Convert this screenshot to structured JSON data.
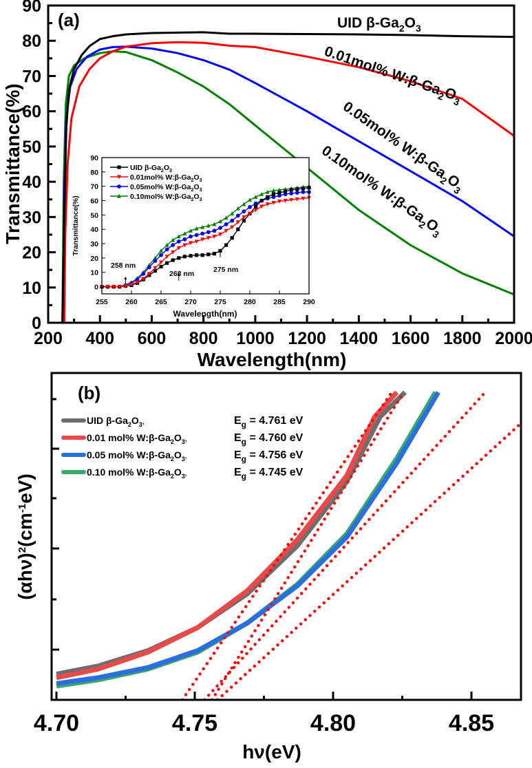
{
  "chart_data": [
    {
      "id": "a",
      "type": "line",
      "panel_label": "(a)",
      "xlabel": "Wavelength(nm)",
      "ylabel": "Transmittance(%)",
      "xlim": [
        200,
        2000
      ],
      "ylim": [
        0,
        90
      ],
      "xticks": [
        200,
        400,
        600,
        800,
        1000,
        1200,
        1400,
        1600,
        1800,
        2000
      ],
      "yticks": [
        0,
        10,
        20,
        30,
        40,
        50,
        60,
        70,
        80,
        90
      ],
      "grid": false,
      "series": [
        {
          "name": "UID β-Ga2O3",
          "label_main": "UID β-Ga",
          "color": "#000000",
          "x": [
            200,
            255,
            262,
            270,
            280,
            300,
            330,
            360,
            400,
            450,
            500,
            600,
            700,
            800,
            900,
            1000,
            1200,
            1400,
            1600,
            1800,
            2000
          ],
          "y": [
            0,
            0,
            30,
            55,
            66,
            72,
            76,
            78.5,
            80.5,
            81.3,
            81.8,
            82.2,
            82.3,
            82.4,
            82.0,
            82.0,
            81.9,
            81.8,
            81.6,
            81.3,
            81.1
          ]
        },
        {
          "name": "0.01mol% W:β-Ga2O3",
          "label_main": "0.01mol% W:β-Ga",
          "color": "#ff0000",
          "x": [
            200,
            262,
            266,
            275,
            290,
            320,
            360,
            400,
            450,
            500,
            600,
            700,
            800,
            900,
            1000,
            1200,
            1400,
            1600,
            1800,
            2000
          ],
          "y": [
            0,
            0,
            25,
            45,
            58,
            67,
            72,
            75,
            77,
            78.3,
            79.3,
            79.6,
            79.4,
            78.6,
            78.2,
            75.5,
            72.5,
            68.5,
            63.5,
            53
          ]
        },
        {
          "name": "0.05mol% W:β-Ga2O3",
          "label_main": "0.05mol% W:β-Ga",
          "color": "#0000ff",
          "x": [
            200,
            257,
            262,
            270,
            285,
            310,
            350,
            400,
            450,
            500,
            600,
            700,
            800,
            900,
            1000,
            1200,
            1400,
            1600,
            1800,
            2000
          ],
          "y": [
            0,
            0,
            35,
            58,
            67,
            72,
            75.5,
            77.5,
            78.2,
            78.3,
            77.8,
            76.5,
            74.5,
            71.8,
            68,
            60,
            51.5,
            43,
            34.5,
            24.5
          ]
        },
        {
          "name": "0.10mol% W:β-Ga2O3",
          "label_main": "0.10mol% W:β-Ga",
          "color": "#008000",
          "x": [
            200,
            255,
            260,
            268,
            280,
            300,
            340,
            400,
            450,
            500,
            600,
            700,
            800,
            900,
            1000,
            1100,
            1200,
            1400,
            1600,
            1800,
            2000
          ],
          "y": [
            0,
            0,
            40,
            62,
            70,
            73,
            75,
            76.5,
            77,
            76.8,
            74.5,
            71,
            67,
            62,
            56,
            50,
            44,
            32,
            22,
            14,
            8
          ]
        }
      ],
      "annotations": [
        {
          "text_main": "UID β-Ga",
          "sub1": "2",
          "mid": "O",
          "sub2": "3"
        },
        {
          "text_main": "0.01mol% W:β-Ga",
          "sub1": "2",
          "mid": "O",
          "sub2": "3"
        },
        {
          "text_main": "0.05mol% W:β-Ga",
          "sub1": "2",
          "mid": "O",
          "sub2": "3"
        },
        {
          "text_main": "0.10mol% W:β-Ga",
          "sub1": "2",
          "mid": "O",
          "sub2": "3"
        }
      ]
    },
    {
      "id": "a-inset",
      "type": "line",
      "xlabel": "Wavelength(nm)",
      "ylabel": "Transmittance(%)",
      "xlim": [
        255,
        290
      ],
      "ylim": [
        -5,
        90
      ],
      "xticks": [
        255,
        260,
        265,
        270,
        275,
        280,
        285,
        290
      ],
      "yticks": [
        0,
        10,
        20,
        30,
        40,
        50,
        60,
        70,
        80,
        90
      ],
      "legend_position": "top-left",
      "series": [
        {
          "name": "UID β-Ga2O3",
          "label_main": "UID β-Ga",
          "color": "#000000",
          "marker": "square",
          "x": [
            255,
            256,
            257,
            258,
            259,
            260,
            261,
            262,
            263,
            264,
            265,
            266,
            267,
            268,
            269,
            270,
            271,
            272,
            273,
            274,
            275,
            276,
            277,
            278,
            279,
            280,
            281,
            282,
            283,
            284,
            285,
            286,
            287,
            288,
            289,
            290
          ],
          "y": [
            0,
            0,
            0,
            0,
            0.5,
            1,
            2.5,
            5,
            8,
            11,
            14,
            16.5,
            18.5,
            20,
            21,
            21.5,
            22,
            22,
            22.5,
            23,
            25,
            29,
            34,
            40,
            46,
            51,
            56,
            60,
            62.5,
            64.5,
            65.5,
            66.5,
            67.5,
            68,
            68.5,
            69
          ]
        },
        {
          "name": "0.01mol% W:β-Ga2O3",
          "label_main": "0.01mol% W:β-Ga",
          "color": "#ff0000",
          "marker": "triangle-down",
          "x": [
            255,
            256,
            257,
            258,
            259,
            260,
            261,
            262,
            263,
            264,
            265,
            266,
            267,
            268,
            269,
            270,
            271,
            272,
            273,
            274,
            275,
            276,
            277,
            278,
            279,
            280,
            281,
            282,
            283,
            284,
            285,
            286,
            287,
            288,
            289,
            290
          ],
          "y": [
            0,
            0,
            0,
            0,
            0.5,
            1.5,
            3,
            5.5,
            9,
            13,
            17,
            21,
            24,
            27,
            29,
            30.5,
            31.5,
            33,
            34,
            35,
            36.5,
            39,
            41.5,
            45,
            48.5,
            51,
            53.5,
            56,
            57.5,
            58.5,
            59.5,
            60,
            60.5,
            61,
            61.5,
            62
          ]
        },
        {
          "name": "0.05mol% W:β-Ga2O3",
          "label_main": "0.05mol% W:β-Ga",
          "color": "#0000ff",
          "marker": "circle",
          "x": [
            255,
            256,
            257,
            258,
            259,
            260,
            261,
            262,
            263,
            264,
            265,
            266,
            267,
            268,
            269,
            270,
            271,
            272,
            273,
            274,
            275,
            276,
            277,
            278,
            279,
            280,
            281,
            282,
            283,
            284,
            285,
            286,
            287,
            288,
            289,
            290
          ],
          "y": [
            0,
            0,
            0,
            0,
            1,
            2.5,
            5,
            9,
            13.5,
            18,
            22,
            26,
            29,
            31.5,
            33,
            35,
            36,
            37,
            38,
            39,
            41,
            43.5,
            46,
            49.5,
            52.5,
            55.5,
            58,
            60,
            61.5,
            62.5,
            63.5,
            64.5,
            65,
            65.5,
            66,
            66
          ]
        },
        {
          "name": "0.10mol% W:β-Ga2O3",
          "label_main": " 0.10mol% W:β-Ga",
          "color": "#008000",
          "marker": "triangle-up",
          "x": [
            255,
            256,
            257,
            258,
            259,
            260,
            261,
            262,
            263,
            264,
            265,
            266,
            267,
            268,
            269,
            270,
            271,
            272,
            273,
            274,
            275,
            276,
            277,
            278,
            279,
            280,
            281,
            282,
            283,
            284,
            285,
            286,
            287,
            288,
            289,
            290
          ],
          "y": [
            0,
            0,
            0,
            0,
            1.5,
            3,
            6,
            10,
            15,
            20,
            25,
            29,
            32.5,
            35,
            37,
            39,
            40.5,
            41.5,
            42.5,
            43.5,
            45.5,
            48,
            51,
            54.5,
            57.5,
            60.5,
            62.5,
            64.5,
            66,
            67,
            67.5,
            68,
            68.5,
            69,
            69.5,
            70
          ]
        }
      ],
      "annotations": [
        {
          "text": "258 nm",
          "arrow_x": 259
        },
        {
          "text": "268 nm",
          "arrow_x": 268
        },
        {
          "text": "275 nm",
          "arrow_x": 275
        }
      ]
    },
    {
      "id": "b",
      "type": "line",
      "panel_label": "(b)",
      "xlabel": "hν(eV)",
      "ylabel_main": "(αhν)",
      "ylabel_sup1": "2",
      "ylabel_mid": "(cm",
      "ylabel_sup2": "-1",
      "ylabel_end": "eV)",
      "xlim": [
        4.7,
        4.868
      ],
      "ylim": [
        0,
        1
      ],
      "xticks": [
        4.7,
        4.75,
        4.8,
        4.85
      ],
      "xtick_labels": [
        "4.70",
        "4.75",
        "4.80",
        "4.85"
      ],
      "y_tick_labels_shown": false,
      "legend_position": "top-left",
      "series": [
        {
          "name": "UID β-Ga2O3",
          "label_main": "UID β-Ga",
          "Eg_label": "E",
          "Eg_sub": "g",
          "Eg_value": " = 4.761 eV",
          "Eg": 4.761,
          "color": "#6e6e6e",
          "x": [
            4.7,
            4.715,
            4.733,
            4.751,
            4.769,
            4.787,
            4.805,
            4.817,
            4.826
          ],
          "y": [
            0.084,
            0.11,
            0.16,
            0.235,
            0.345,
            0.5,
            0.71,
            0.92,
            1.0
          ]
        },
        {
          "name": "0.01 mol% W:β-Ga2O3",
          "label_main": "0.01 mol% W:β-Ga",
          "Eg_label": "E",
          "Eg_sub": "g",
          "Eg_value": " = 4.760 eV",
          "Eg": 4.76,
          "color": "#e84a4a",
          "x": [
            4.7,
            4.715,
            4.733,
            4.751,
            4.769,
            4.787,
            4.805,
            4.815,
            4.823
          ],
          "y": [
            0.072,
            0.1,
            0.155,
            0.235,
            0.355,
            0.52,
            0.73,
            0.92,
            1.0
          ]
        },
        {
          "name": "0.05 mol% W:β-Ga2O3",
          "label_main": "0.05 mol% W:β-Ga",
          "Eg_label": "E",
          "Eg_sub": "g",
          "Eg_value": " = 4.756 eV",
          "Eg": 4.756,
          "color": "#2a6fdb",
          "x": [
            4.7,
            4.715,
            4.733,
            4.751,
            4.769,
            4.787,
            4.805,
            4.823,
            4.838
          ],
          "y": [
            0.053,
            0.072,
            0.105,
            0.16,
            0.25,
            0.37,
            0.53,
            0.77,
            1.0
          ]
        },
        {
          "name": "0.10 mol% W:β-Ga2O3",
          "label_main": " 0.10 mol% W:β-Ga",
          "Eg_label": "E",
          "Eg_sub": "g",
          "Eg_value": " = 4.745 eV",
          "Eg": 4.745,
          "color": "#3aa76d",
          "x": [
            4.7,
            4.715,
            4.733,
            4.751,
            4.769,
            4.787,
            4.805,
            4.823,
            4.837
          ],
          "y": [
            0.045,
            0.065,
            0.1,
            0.155,
            0.25,
            0.375,
            0.54,
            0.785,
            1.0
          ]
        }
      ],
      "fit_lines": [
        {
          "color": "#ee1111",
          "style": "dotted",
          "x": [
            4.7455,
            4.8212
          ],
          "y": [
            0,
            1
          ]
        },
        {
          "color": "#ee1111",
          "style": "dotted",
          "x": [
            4.7562,
            4.8255
          ],
          "y": [
            0,
            1
          ]
        },
        {
          "color": "#ee1111",
          "style": "dotted",
          "x": [
            4.7535,
            4.855
          ],
          "y": [
            0,
            1
          ]
        },
        {
          "color": "#ee1111",
          "style": "dotted",
          "x": [
            4.7582,
            4.868
          ],
          "y": [
            0,
            0.9
          ]
        }
      ]
    }
  ]
}
